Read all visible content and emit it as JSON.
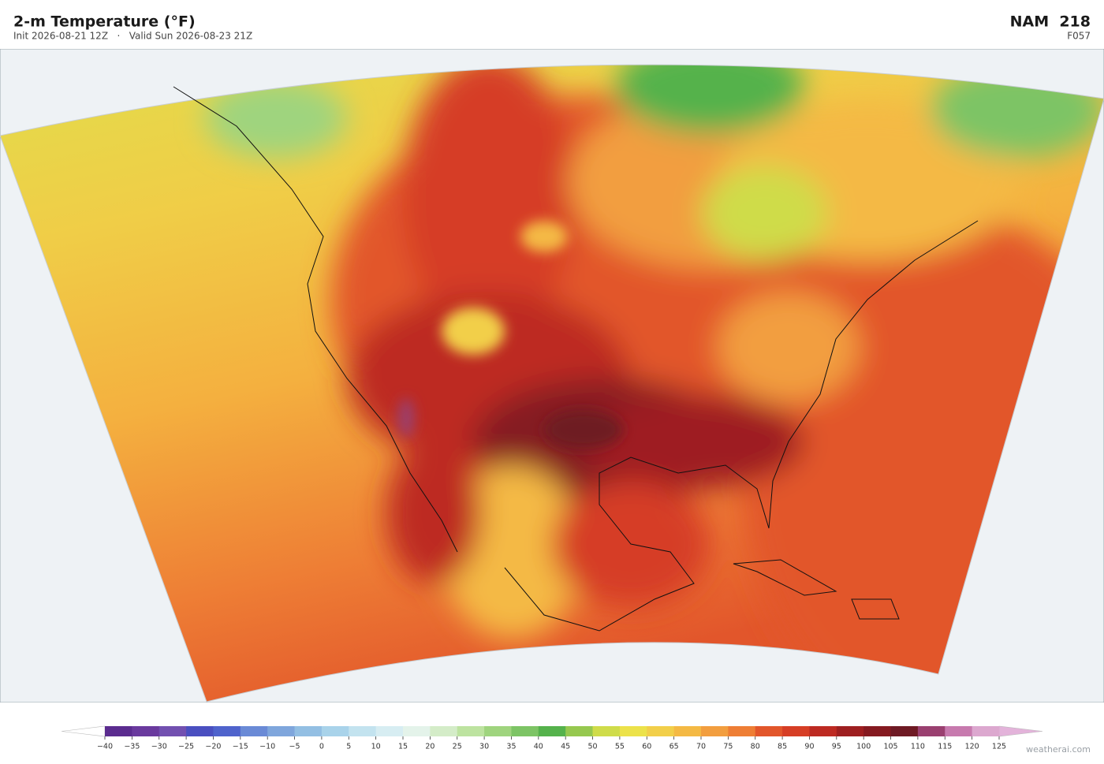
{
  "header": {
    "title": "2-m Temperature  (°F)",
    "subtitle": "Init 2026-08-21 12Z   ·   Valid Sun 2026-08-23 21Z",
    "model": "NAM  218",
    "forecast_hour": "F057"
  },
  "colorbar": {
    "ticks": [
      {
        "value": -40,
        "label": "−40"
      },
      {
        "value": -35,
        "label": "−35"
      },
      {
        "value": -30,
        "label": "−30"
      },
      {
        "value": -25,
        "label": "−25"
      },
      {
        "value": -20,
        "label": "−20"
      },
      {
        "value": -15,
        "label": "−15"
      },
      {
        "value": -10,
        "label": "−10"
      },
      {
        "value": -5,
        "label": "−5"
      },
      0,
      5,
      10,
      15,
      20,
      25,
      30,
      35,
      40,
      45,
      50,
      55,
      60,
      65,
      70,
      75,
      80,
      85,
      90,
      95,
      100,
      105,
      110,
      115,
      120,
      125
    ],
    "colors": [
      "#5b2c8f",
      "#6a3a9e",
      "#7250b0",
      "#4a4fc0",
      "#4f63cc",
      "#6a8ad6",
      "#7fa6dc",
      "#93bfe3",
      "#a9d3ea",
      "#c3e3ef",
      "#d7edf2",
      "#e4f3ea",
      "#d4ecc8",
      "#bde3a0",
      "#9fd47e",
      "#7dc465",
      "#55b24c",
      "#96c84f",
      "#cfdc4a",
      "#ece24a",
      "#f2cf4a",
      "#f4b944",
      "#f29e3f",
      "#ee7e35",
      "#e2562b",
      "#d63e25",
      "#bd2a22",
      "#9e1f20",
      "#851a20",
      "#6e1a24",
      "#9a4070",
      "#c77aae",
      "#dca8cf"
    ],
    "under_color": "#ffffff",
    "over_color": "#e3b3da"
  },
  "watermark": "weatherai.com"
}
